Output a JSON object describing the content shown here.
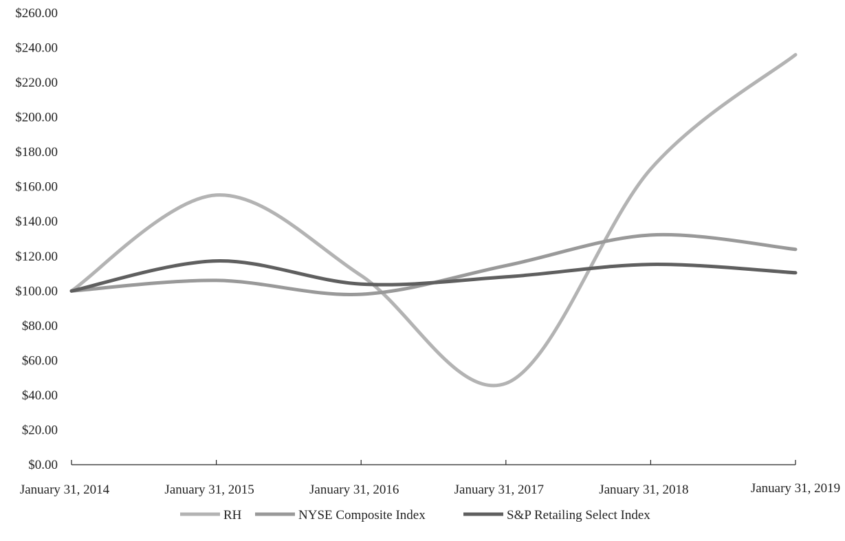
{
  "chart_data": {
    "type": "line",
    "title": "",
    "xlabel": "",
    "ylabel": "",
    "categories": [
      "January 31, 2014",
      "January 31, 2015",
      "January 31, 2016",
      "January 31, 2017",
      "January 31, 2018",
      "January 31, 2019"
    ],
    "ylim": [
      0,
      260
    ],
    "yticks": [
      "$0.00",
      "$20.00",
      "$40.00",
      "$60.00",
      "$80.00",
      "$100.00",
      "$120.00",
      "$140.00",
      "$160.00",
      "$180.00",
      "$200.00",
      "$220.00",
      "$240.00",
      "$260.00"
    ],
    "grid": false,
    "legend": "bottom",
    "series": [
      {
        "name": "RH",
        "color": "#b3b3b3",
        "values": [
          100.0,
          155.2,
          108.9,
          46.8,
          170.2,
          236.0
        ]
      },
      {
        "name": "NYSE Composite Index",
        "color": "#999999",
        "values": [
          100.0,
          106.1,
          98.1,
          114.6,
          132.2,
          124.0
        ]
      },
      {
        "name": "S&P Retailing Select Index",
        "color": "#5f5f5f",
        "values": [
          100.0,
          117.3,
          104.0,
          108.1,
          115.3,
          110.5
        ]
      }
    ]
  }
}
